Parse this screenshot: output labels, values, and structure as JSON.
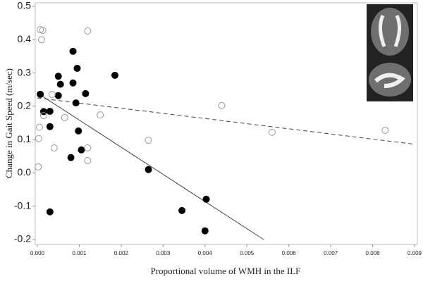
{
  "chart_data": {
    "type": "scatter",
    "xlabel": "Proportional volume of WMH in the ILF",
    "ylabel": "Change in Gait Speed (m/sec)",
    "xlim": [
      0,
      0.009
    ],
    "ylim": [
      -0.2,
      0.5
    ],
    "xticks": [
      {
        "value": 0,
        "label": "0.000"
      },
      {
        "value": 0.001,
        "label": "0.001"
      },
      {
        "value": 0.002,
        "label": "0.002"
      },
      {
        "value": 0.003,
        "label": "0.003"
      },
      {
        "value": 0.004,
        "label": "0.004"
      },
      {
        "value": 0.005,
        "label": "0.005"
      },
      {
        "value": 0.006,
        "label": "0.006"
      },
      {
        "value": 0.007,
        "label": "0.007"
      },
      {
        "value": 0.008,
        "label": "0.008"
      },
      {
        "value": 0.009,
        "label": "0.009"
      }
    ],
    "yticks": [
      -0.2,
      -0.1,
      {
        "value": 0,
        "label": "0.0"
      },
      0.1,
      0.2,
      0.3,
      0.4,
      0.5
    ],
    "series": [
      {
        "color": "#000000",
        "filled": true,
        "x": [
          7e-05,
          0.00015,
          0.0003,
          0.0003,
          0.0003,
          0.0005,
          0.0005,
          0.00055,
          0.00085,
          0.00085,
          0.00095,
          0.00092,
          0.00098,
          0.00105,
          0.0008,
          0.00115,
          0.00185,
          0.00265,
          0.00345,
          0.00403,
          0.004
        ],
        "values": [
          0.236,
          0.184,
          0.185,
          0.139,
          -0.117,
          0.29,
          0.232,
          0.266,
          0.365,
          0.27,
          0.314,
          0.21,
          0.126,
          0.069,
          0.046,
          0.238,
          0.293,
          0.01,
          -0.113,
          -0.079,
          -0.174
        ]
      },
      {
        "color": "#999999",
        "filled": false,
        "x": [
          2e-05,
          3e-05,
          5e-05,
          7e-05,
          0.00013,
          0.0001,
          0.00015,
          0.00035,
          0.0004,
          0.00065,
          0.0012,
          0.0012,
          0.0012,
          0.0015,
          0.00265,
          0.0044,
          0.0056,
          0.0083
        ],
        "values": [
          0.018,
          0.103,
          0.137,
          0.43,
          0.428,
          0.4,
          0.172,
          0.236,
          0.075,
          0.166,
          0.426,
          0.075,
          0.037,
          0.174,
          0.098,
          0.202,
          0.122,
          0.128
        ]
      }
    ],
    "lines": [
      {
        "style": "solid",
        "color": "#444444",
        "x": [
          0,
          0.0054
        ],
        "values": [
          0.24,
          -0.2
        ]
      },
      {
        "style": "dashed",
        "color": "#444444",
        "x": [
          0,
          0.009
        ],
        "values": [
          0.225,
          0.086
        ]
      }
    ]
  }
}
